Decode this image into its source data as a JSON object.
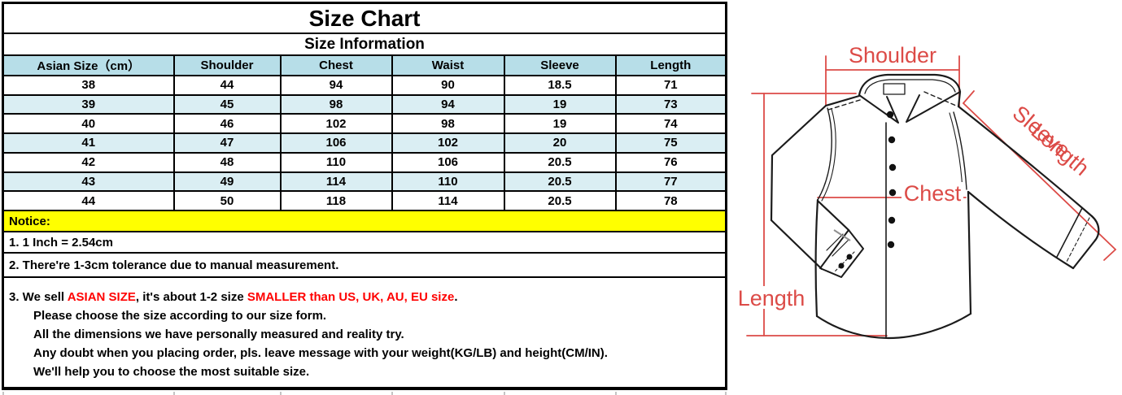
{
  "header": {
    "title": "Size Chart",
    "subtitle": "Size Information"
  },
  "table": {
    "columns": [
      "Asian Size（cm）",
      "Shoulder",
      "Chest",
      "Waist",
      "Sleeve",
      "Length"
    ],
    "rows": [
      [
        "38",
        "44",
        "94",
        "90",
        "18.5",
        "71"
      ],
      [
        "39",
        "45",
        "98",
        "94",
        "19",
        "73"
      ],
      [
        "40",
        "46",
        "102",
        "98",
        "19",
        "74"
      ],
      [
        "41",
        "47",
        "106",
        "102",
        "20",
        "75"
      ],
      [
        "42",
        "48",
        "110",
        "106",
        "20.5",
        "76"
      ],
      [
        "43",
        "49",
        "114",
        "110",
        "20.5",
        "77"
      ],
      [
        "44",
        "50",
        "118",
        "114",
        "20.5",
        "78"
      ]
    ]
  },
  "notes": {
    "notice_label": "Notice:",
    "note1": "1. 1 Inch = 2.54cm",
    "note2": "2. There're 1-3cm tolerance due to manual measurement.",
    "note3_lines": [
      [
        {
          "t": "3. We sell "
        },
        {
          "t": "ASIAN SIZE",
          "red": true
        },
        {
          "t": ", it's about 1-2 size "
        },
        {
          "t": "SMALLER than US, UK, AU, EU size",
          "red": true
        },
        {
          "t": "."
        }
      ],
      [
        {
          "t": "Please choose the size according to our size form."
        }
      ],
      [
        {
          "t": "All the dimensions we have personally measured and reality try."
        }
      ],
      [
        {
          "t": "Any doubt when you placing order, pls. leave message with your weight(KG/LB) and height(CM/IN)."
        }
      ],
      [
        {
          "t": "We'll help you to choose the most suitable size."
        }
      ]
    ]
  },
  "diagram": {
    "labels": {
      "shoulder": "Shoulder",
      "sleeve_line1": "Sleeve",
      "sleeve_line2": "Length",
      "chest": "Chest",
      "length": "Length"
    }
  },
  "colors": {
    "header-bg": "#b7dee8",
    "alt-row-bg": "#daeef3",
    "notice-bg": "#ffff00",
    "note-red": "#ff0000",
    "diagram-red": "#dc4b47",
    "border": "#000000"
  }
}
